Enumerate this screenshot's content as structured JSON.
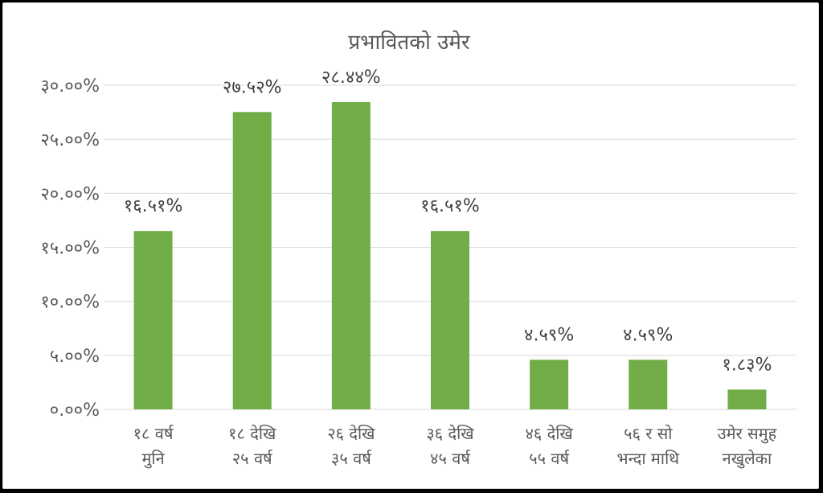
{
  "chart_data": {
    "type": "bar",
    "title": "प्रभावितको उमेर",
    "categories": [
      [
        "१८ वर्ष",
        "मुनि"
      ],
      [
        "१८ देखि",
        "२५ वर्ष"
      ],
      [
        "२६ देखि",
        "३५ वर्ष"
      ],
      [
        "३६ देखि",
        "४५ वर्ष"
      ],
      [
        "४६ देखि",
        "५५ वर्ष"
      ],
      [
        "५६ र सो",
        "भन्दा माथि"
      ],
      [
        "उमेर समुह",
        "नखुलेका"
      ]
    ],
    "values": [
      16.51,
      27.52,
      28.44,
      16.51,
      4.59,
      4.59,
      1.83
    ],
    "data_labels": [
      "१६.५१%",
      "२७.५२%",
      "२८.४४%",
      "१६.५१%",
      "४.५९%",
      "४.५९%",
      "१.८३%"
    ],
    "yticks": [
      0,
      5,
      10,
      15,
      20,
      25,
      30
    ],
    "ytick_labels": [
      "०.००%",
      "५.००%",
      "१०.००%",
      "१५.००%",
      "२०.००%",
      "२५.००%",
      "३०.००%"
    ],
    "ylim": [
      0,
      30
    ],
    "grid": true,
    "legend": "none",
    "bar_color": "#70ad47",
    "grid_color": "#d9d9d9"
  }
}
